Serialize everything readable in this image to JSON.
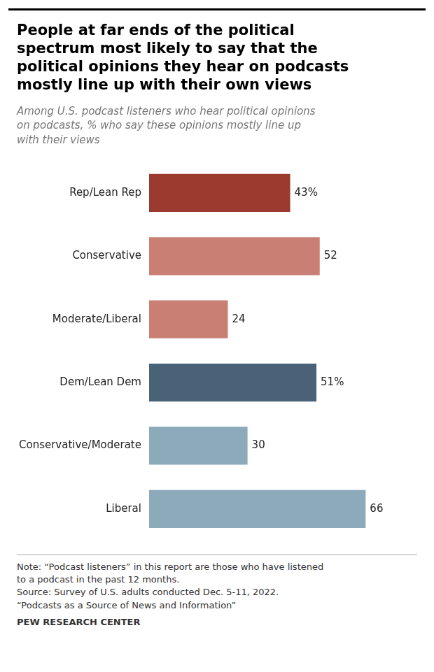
{
  "chart_data": {
    "type": "bar",
    "orientation": "horizontal",
    "title": "People at far ends of the political\nspectrum most likely to say that the\npolitical opinions they hear on podcasts\nmostly line up with their own views",
    "subtitle": "Among U.S. podcast listeners who hear political opinions\non podcasts, % who say these opinions mostly line up\nwith their views",
    "categories": [
      "Rep/Lean Rep",
      "Conservative",
      "Moderate/Liberal",
      "Dem/Lean Dem",
      "Conservative/Moderate",
      "Liberal"
    ],
    "values": [
      43,
      52,
      24,
      51,
      30,
      66
    ],
    "value_labels": [
      "43%",
      "52",
      "24",
      "51%",
      "30",
      "66"
    ],
    "colors": [
      "#9b3a2e",
      "#c97f74",
      "#c97f74",
      "#4a6278",
      "#8daabb",
      "#8daabb"
    ],
    "data_labels": true,
    "xlim": [
      0,
      80
    ],
    "grid": false,
    "tick_labels": "y",
    "annotations": [
      "Note: “Podcast listeners” in this report are those who have listened\nto a podcast in the past 12 months.\nSource: Survey of U.S. adults conducted Dec. 5-11, 2022.\n“Podcasts as a Source of News and Information”",
      "PEW RESEARCH CENTER"
    ]
  }
}
